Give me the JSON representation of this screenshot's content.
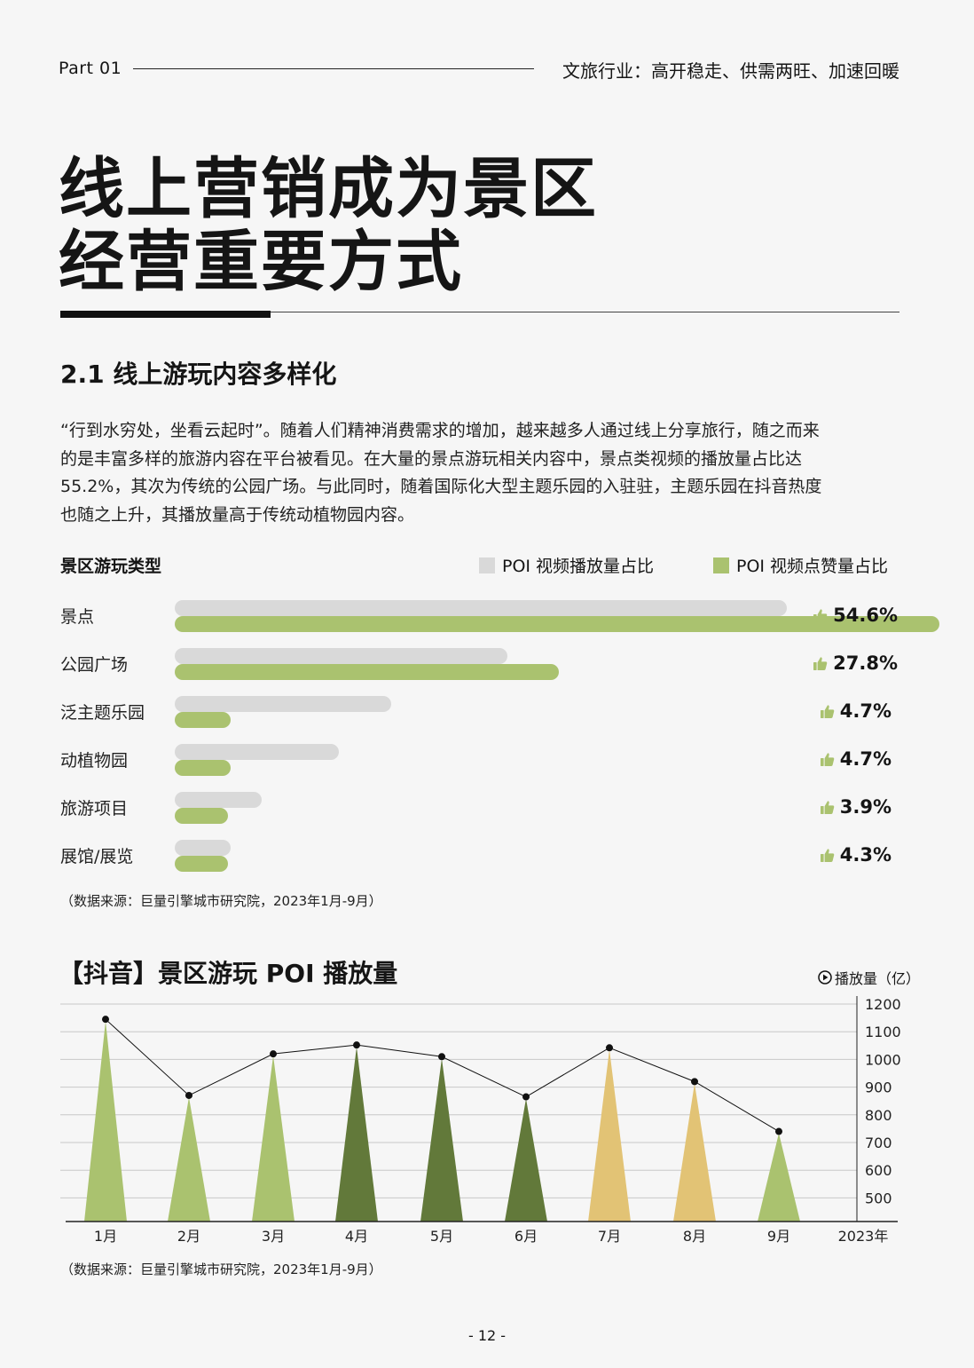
{
  "header": {
    "part": "Part  01",
    "tagline": "文旅行业：高开稳走、供需两旺、加速回暖"
  },
  "title": {
    "line1": "线上营销成为景区",
    "line2": "经营重要方式"
  },
  "section": {
    "heading": "2.1 线上游玩内容多样化",
    "paragraph_lines": [
      "“行到水穷处，坐看云起时”。随着人们精神消费需求的增加，越来越多人通过线上分享旅行，随之而来",
      "的是丰富多样的旅游内容在平台被看见。在大量的景点游玩相关内容中，景点类视频的播放量占比达",
      "55.2%，其次为传统的公园广场。与此同时，随着国际化大型主题乐园的入驻驻，主题乐园在抖音热度",
      "也随之上升，其播放量高于传统动植物园内容。"
    ]
  },
  "colors": {
    "grey_bar": "#d9d9d9",
    "green_bar": "#aac26f",
    "light_green": "#aac26f",
    "dark_green": "#62793a",
    "yellow": "#e2c375"
  },
  "chart_data": [
    {
      "type": "bar",
      "orientation": "horizontal",
      "title": "景区游玩类型",
      "categories": [
        "景点",
        "公园广场",
        "泛主题乐园",
        "动植物园",
        "旅游项目",
        "展馆/展览"
      ],
      "series": [
        {
          "name": "POI 视频播放量占比",
          "values": [
            55.2,
            30.0,
            19.5,
            14.8,
            7.8,
            5.0
          ]
        },
        {
          "name": "POI 视频点赞量占比",
          "values": [
            54.6,
            27.8,
            4.7,
            4.7,
            3.9,
            4.3
          ]
        }
      ],
      "value_labels": [
        "54.6%",
        "27.8%",
        "4.7%",
        "4.7%",
        "3.9%",
        "4.3%"
      ],
      "value_label_icon": "thumbs-up-icon",
      "legend": "top-right",
      "source": "（数据来源：巨量引擎城市研究院，2023年1月-9月）"
    },
    {
      "type": "line",
      "title": "【抖音】景区游玩 POI 播放量",
      "unit_label": "播放量（亿）",
      "unit_icon": "play-icon",
      "categories": [
        "1月",
        "2月",
        "3月",
        "4月",
        "5月",
        "6月",
        "7月",
        "8月",
        "9月"
      ],
      "x_end_label": "2023年",
      "values": [
        1145,
        870,
        1020,
        1052,
        1010,
        865,
        1042,
        920,
        740
      ],
      "peak_colors": [
        "light",
        "light",
        "light",
        "dark",
        "dark",
        "dark",
        "yellow",
        "yellow",
        "light"
      ],
      "y_ticks": [
        500,
        600,
        700,
        800,
        900,
        1000,
        1100,
        1200
      ],
      "ylim": [
        450,
        1200
      ],
      "grid": true,
      "source": "（数据来源：巨量引擎城市研究院，2023年1月-9月）"
    }
  ],
  "footer": {
    "page": "- 12 -"
  }
}
